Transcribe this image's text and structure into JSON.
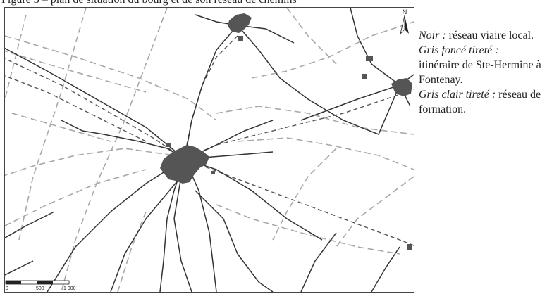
{
  "caption_top": "Figure 3 – plan de situation du bourg et de son réseau de chemins",
  "legend": {
    "black_label": "Noir :",
    "black_text": " réseau viaire local.",
    "dark_label": "Gris foncé tireté :",
    "dark_text": "itinéraire de Ste-Hermine à Fontenay.",
    "light_label": "Gris clair tireté :",
    "light_text": " réseau de formation."
  },
  "north_label": "N",
  "scale": {
    "tick_0": "0",
    "tick_500": "500",
    "tick_1000": "1 000"
  },
  "colors": {
    "road_black": "#333333",
    "route_dark_dashed": "#555555",
    "network_light_dashed": "#a8a8a8",
    "settlement_fill": "#555555"
  }
}
